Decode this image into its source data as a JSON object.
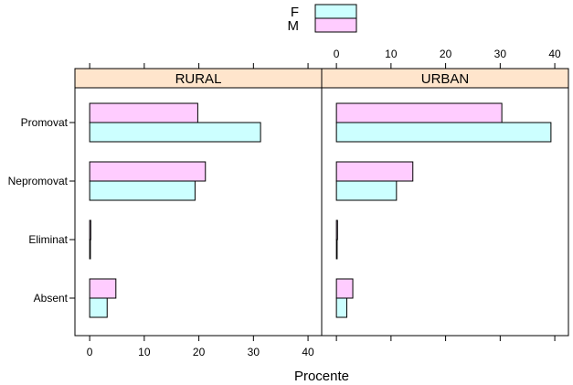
{
  "chart_data": {
    "type": "bar",
    "orientation": "horizontal",
    "xlabel": "Procente",
    "xlim": [
      -2.7,
      42.5
    ],
    "xticks": [
      0,
      10,
      20,
      30,
      40
    ],
    "categories": [
      "Promovat",
      "Nepromovat",
      "Eliminat",
      "Absent"
    ],
    "legend": {
      "placement": "top",
      "entries": [
        {
          "name": "F",
          "color": "#ccffff"
        },
        {
          "name": "M",
          "color": "#ffccff"
        }
      ]
    },
    "panels": [
      {
        "name": "RURAL",
        "series": [
          {
            "name": "M",
            "values": [
              19.8,
              21.2,
              0.2,
              4.8
            ]
          },
          {
            "name": "F",
            "values": [
              31.3,
              19.3,
              0.1,
              3.2
            ]
          }
        ]
      },
      {
        "name": "URBAN",
        "series": [
          {
            "name": "M",
            "values": [
              30.3,
              14.0,
              0.2,
              3.0
            ]
          },
          {
            "name": "F",
            "values": [
              39.3,
              11.0,
              0.1,
              1.9
            ]
          }
        ]
      }
    ],
    "colors": {
      "strip": "#ffe5cc",
      "F": "#ccffff",
      "M": "#ffccff",
      "axis": "#000000"
    }
  }
}
